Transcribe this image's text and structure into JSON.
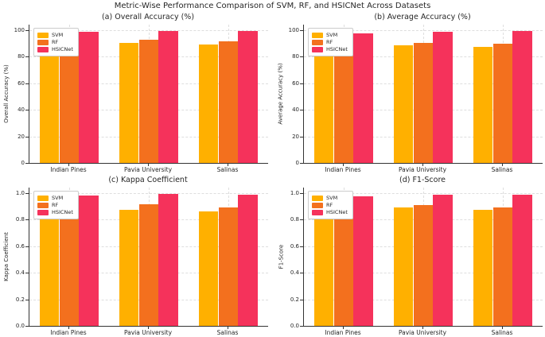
{
  "figure": {
    "title": "Metric-Wise Performance Comparison of SVM, RF, and HSICNet Across Datasets"
  },
  "chart_data": [
    {
      "type": "bar",
      "title": "(a) Overall Accuracy (%)",
      "ylabel": "Overall Accuracy (%)",
      "categories": [
        "Indian Pines",
        "Pavia University",
        "Salinas"
      ],
      "series": [
        {
          "name": "SVM",
          "color": "#FFB000",
          "values": [
            83.5,
            90.0,
            89.0
          ]
        },
        {
          "name": "RF",
          "color": "#F3701E",
          "values": [
            88.0,
            92.5,
            91.5
          ]
        },
        {
          "name": "HSICNet",
          "color": "#F5325B",
          "values": [
            98.6,
            99.2,
            99.4
          ]
        }
      ],
      "ylim": [
        0,
        104
      ],
      "yticks": [
        0,
        20,
        40,
        60,
        80,
        100
      ],
      "ytick_labels": [
        "0",
        "20",
        "40",
        "60",
        "80",
        "100"
      ],
      "grid": true,
      "legend_position": "upper left"
    },
    {
      "type": "bar",
      "title": "(b) Average Accuracy (%)",
      "ylabel": "Average Accuracy (%)",
      "categories": [
        "Indian Pines",
        "Pavia University",
        "Salinas"
      ],
      "series": [
        {
          "name": "SVM",
          "color": "#FFB000",
          "values": [
            82.0,
            88.7,
            87.5
          ]
        },
        {
          "name": "RF",
          "color": "#F3701E",
          "values": [
            84.7,
            90.2,
            89.6
          ]
        },
        {
          "name": "HSICNet",
          "color": "#F5325B",
          "values": [
            97.7,
            98.4,
            99.0
          ]
        }
      ],
      "ylim": [
        0,
        104
      ],
      "yticks": [
        0,
        20,
        40,
        60,
        80,
        100
      ],
      "ytick_labels": [
        "0",
        "20",
        "40",
        "60",
        "80",
        "100"
      ],
      "grid": true,
      "legend_position": "upper left"
    },
    {
      "type": "bar",
      "title": "(c) Kappa Coefficient",
      "ylabel": "Kappa Coefficient",
      "categories": [
        "Indian Pines",
        "Pavia University",
        "Salinas"
      ],
      "series": [
        {
          "name": "SVM",
          "color": "#FFB000",
          "values": [
            0.81,
            0.875,
            0.862
          ]
        },
        {
          "name": "RF",
          "color": "#F3701E",
          "values": [
            0.845,
            0.915,
            0.888
          ]
        },
        {
          "name": "HSICNet",
          "color": "#F5325B",
          "values": [
            0.981,
            0.99,
            0.988
          ]
        }
      ],
      "ylim": [
        0,
        1.04
      ],
      "yticks": [
        0,
        0.2,
        0.4,
        0.6,
        0.8,
        1.0
      ],
      "ytick_labels": [
        "0.0",
        "0.2",
        "0.4",
        "0.6",
        "0.8",
        "1.0"
      ],
      "grid": true,
      "legend_position": "upper left"
    },
    {
      "type": "bar",
      "title": "(d) F1-Score",
      "ylabel": "F1-Score",
      "categories": [
        "Indian Pines",
        "Pavia University",
        "Salinas"
      ],
      "series": [
        {
          "name": "SVM",
          "color": "#FFB000",
          "values": [
            0.835,
            0.892,
            0.871
          ]
        },
        {
          "name": "RF",
          "color": "#F3701E",
          "values": [
            0.859,
            0.91,
            0.889
          ]
        },
        {
          "name": "HSICNet",
          "color": "#F5325B",
          "values": [
            0.973,
            0.984,
            0.988
          ]
        }
      ],
      "ylim": [
        0,
        1.04
      ],
      "yticks": [
        0,
        0.2,
        0.4,
        0.6,
        0.8,
        1.0
      ],
      "ytick_labels": [
        "0.0",
        "0.2",
        "0.4",
        "0.6",
        "0.8",
        "1.0"
      ],
      "grid": true,
      "legend_position": "upper left"
    }
  ]
}
